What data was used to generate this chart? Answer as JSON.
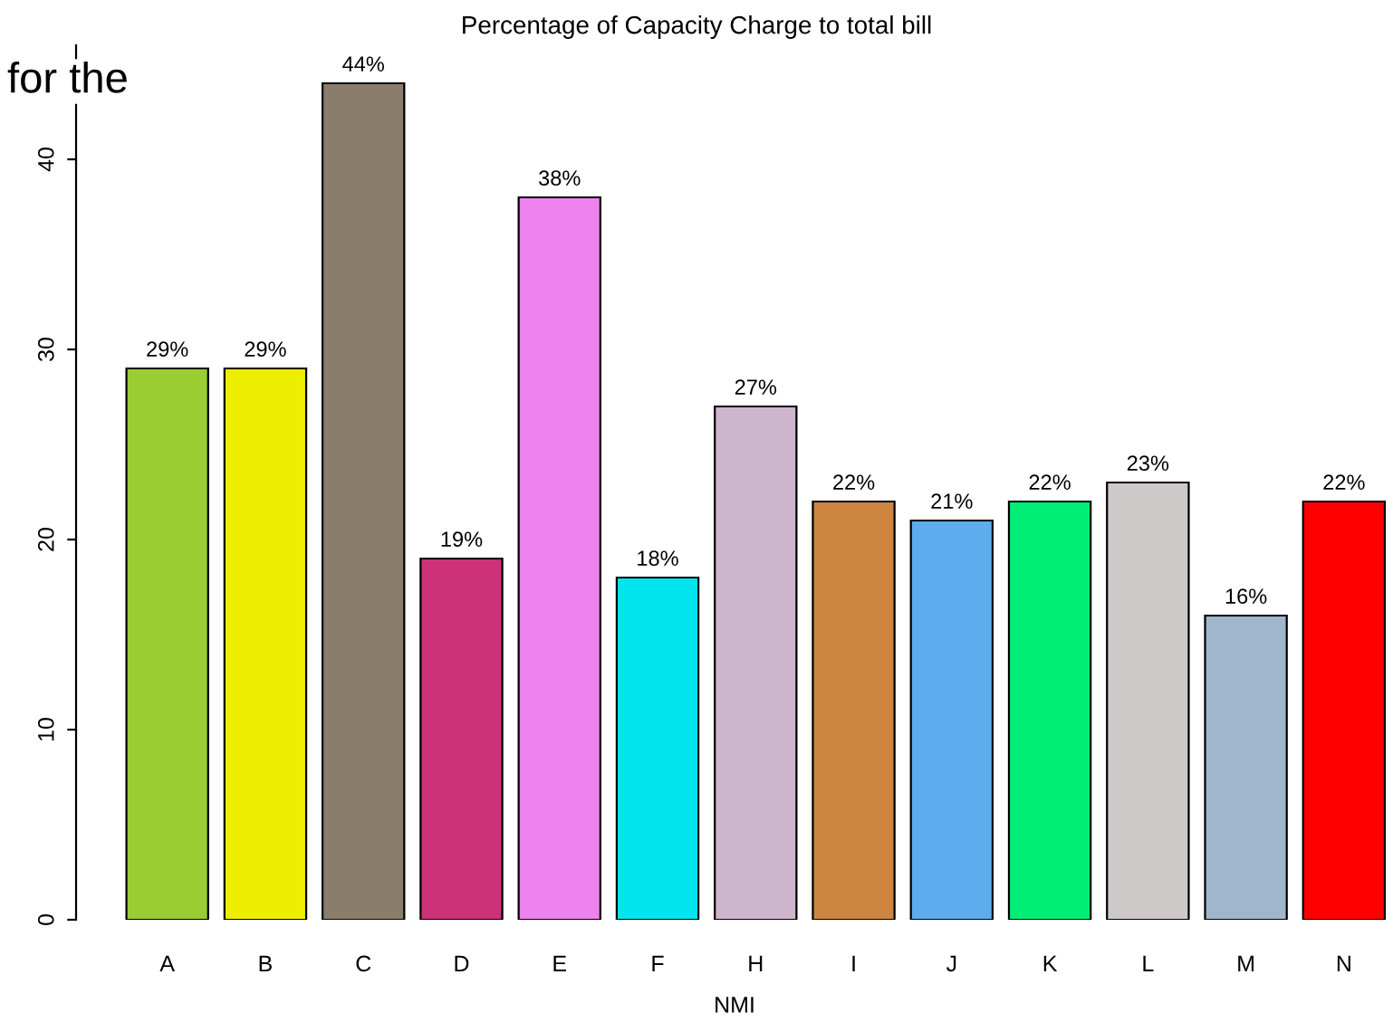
{
  "chart_data": {
    "type": "bar",
    "title": "Percentage of Capacity Charge to total bill",
    "xlabel": "NMI",
    "annotations": [
      "for the"
    ],
    "categories": [
      "A",
      "B",
      "C",
      "D",
      "E",
      "F",
      "H",
      "I",
      "J",
      "K",
      "L",
      "M",
      "N"
    ],
    "values": [
      29,
      29,
      44,
      19,
      38,
      18,
      27,
      22,
      21,
      22,
      23,
      16,
      22
    ],
    "value_labels": [
      "29%",
      "29%",
      "44%",
      "19%",
      "38%",
      "18%",
      "27%",
      "22%",
      "21%",
      "22%",
      "23%",
      "16%",
      "22%"
    ],
    "colors": [
      "#9acd32",
      "#eeee00",
      "#8b7d6b",
      "#cd3278",
      "#ee82ee",
      "#00e5ee",
      "#cdb5cd",
      "#cd853f",
      "#5cacee",
      "#00ee76",
      "#cdc9c9",
      "#9fb6cd",
      "#ff0000"
    ],
    "ylim": [
      0,
      46
    ],
    "yticks": [
      0,
      10,
      20,
      30,
      40
    ],
    "grid": false,
    "legend": false
  }
}
